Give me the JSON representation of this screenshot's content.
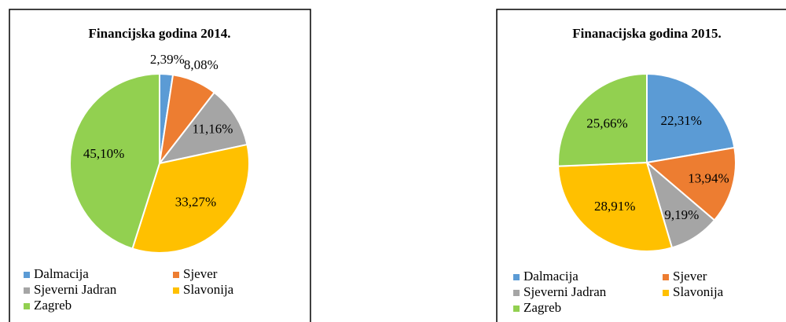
{
  "chart_data": [
    {
      "type": "pie",
      "title": "Financijska godina 2014.",
      "categories": [
        "Dalmacija",
        "Sjever",
        "Sjeverni Jadran",
        "Slavonija",
        "Zagreb"
      ],
      "values": [
        2.39,
        8.08,
        11.16,
        33.27,
        45.1
      ],
      "value_labels": [
        "2,39%",
        "8,08%",
        "11,16%",
        "33,27%",
        "45,10%"
      ],
      "colors": [
        "#5b9bd5",
        "#ed7d31",
        "#a5a5a5",
        "#ffc000",
        "#92d050"
      ]
    },
    {
      "type": "pie",
      "title": "Finanacijska godina 2015.",
      "categories": [
        "Dalmacija",
        "Sjever",
        "Sjeverni Jadran",
        "Slavonija",
        "Zagreb"
      ],
      "values": [
        22.31,
        13.94,
        9.19,
        28.91,
        25.66
      ],
      "value_labels": [
        "22,31%",
        "13,94%",
        "9,19%",
        "28,91%",
        "25,66%"
      ],
      "colors": [
        "#5b9bd5",
        "#ed7d31",
        "#a5a5a5",
        "#ffc000",
        "#92d050"
      ]
    }
  ]
}
